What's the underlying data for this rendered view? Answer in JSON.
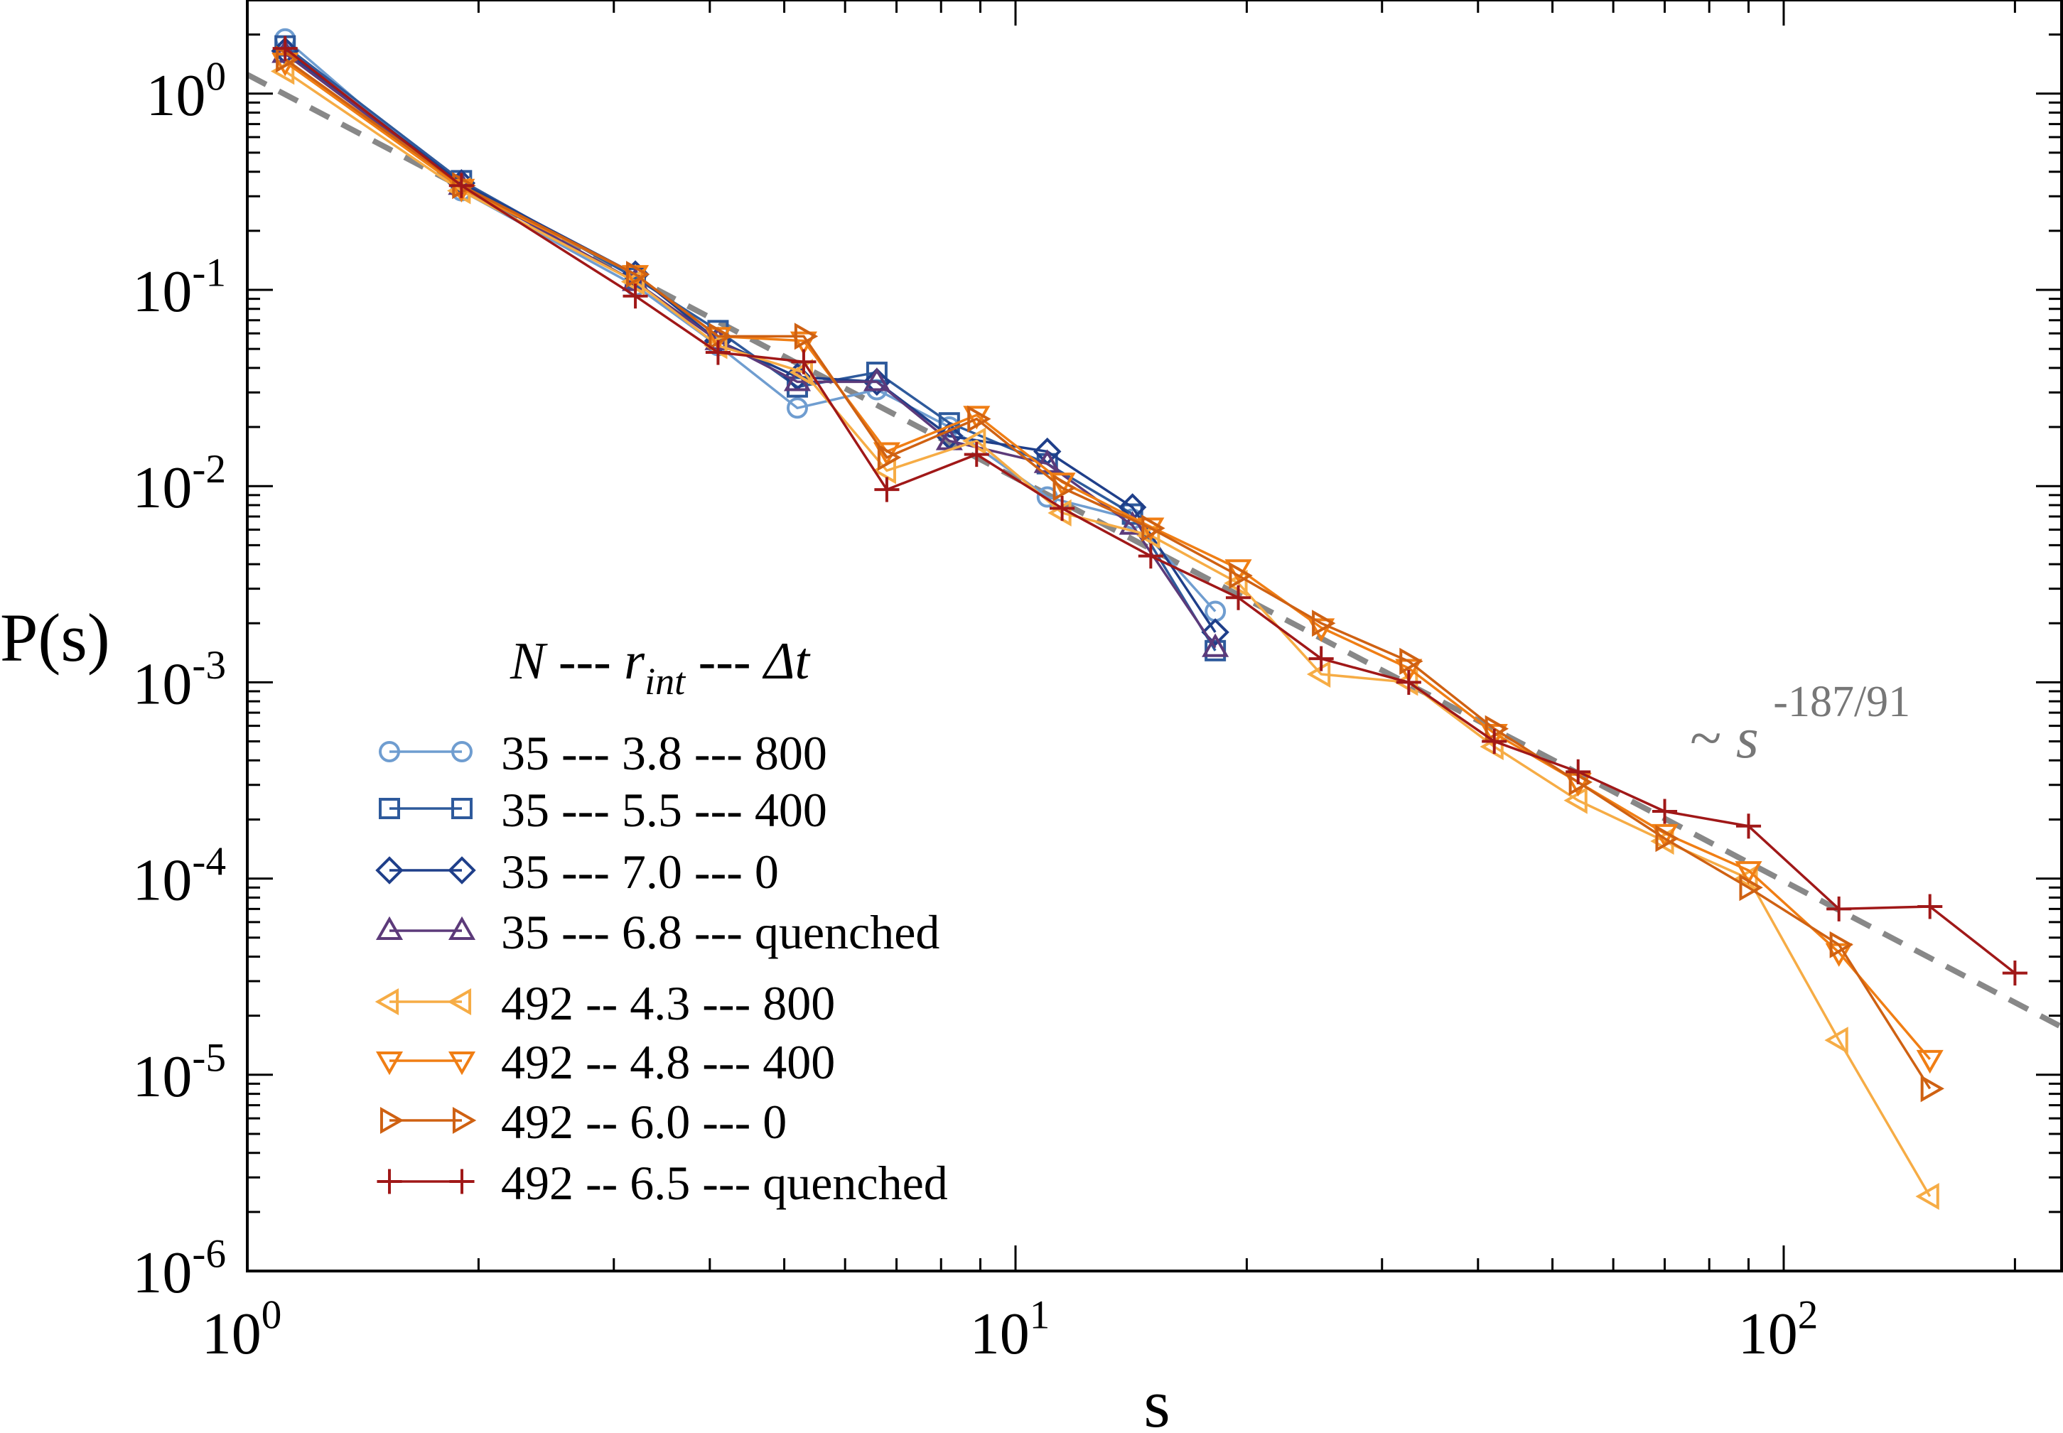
{
  "chart_data": {
    "type": "scatter",
    "title": "",
    "xlabel": "s",
    "ylabel": "P(s)",
    "xscale": "log",
    "yscale": "log",
    "xlim": [
      1,
      230
    ],
    "ylim": [
      1e-06,
      3
    ],
    "x_tick_labels": [
      {
        "base": "10",
        "exp": "0",
        "value": 1
      },
      {
        "base": "10",
        "exp": "1",
        "value": 10
      },
      {
        "base": "10",
        "exp": "2",
        "value": 100
      }
    ],
    "y_tick_labels": [
      {
        "base": "10",
        "exp": "0",
        "value": 1
      },
      {
        "base": "10",
        "exp": "-1",
        "value": 0.1
      },
      {
        "base": "10",
        "exp": "-2",
        "value": 0.01
      },
      {
        "base": "10",
        "exp": "-3",
        "value": 0.001
      },
      {
        "base": "10",
        "exp": "-4",
        "value": 0.0001
      },
      {
        "base": "10",
        "exp": "-5",
        "value": 1e-05
      },
      {
        "base": "10",
        "exp": "-6",
        "value": 1e-06
      }
    ],
    "legend": {
      "title_parts": [
        "N",
        " --- ",
        "r",
        "int",
        " --- ",
        "Δt"
      ],
      "placement": "bottom-left"
    },
    "annotation": {
      "prefix": "~",
      "var": "s",
      "exp": "-187/91"
    },
    "fit_line": {
      "coef": 1.25,
      "exponent": -2.0549,
      "x_range": [
        1,
        230
      ],
      "color": "#888888"
    },
    "series": [
      {
        "name": "35 --- 3.8 --- 800",
        "color": "#6f9dd0",
        "marker": "circle",
        "x": [
          1.12,
          1.9,
          3.2,
          4.1,
          5.2,
          6.6,
          8.2,
          11.0,
          14.2,
          18.2
        ],
        "y": [
          1.9,
          0.32,
          0.105,
          0.052,
          0.025,
          0.031,
          0.02,
          0.0088,
          0.0068,
          0.0023
        ]
      },
      {
        "name": "35 --- 5.5 --- 400",
        "color": "#2e5a9c",
        "marker": "square",
        "x": [
          1.12,
          1.9,
          3.2,
          4.1,
          5.2,
          6.6,
          8.2,
          11.0,
          14.2,
          18.2
        ],
        "y": [
          1.75,
          0.36,
          0.115,
          0.062,
          0.032,
          0.038,
          0.021,
          0.013,
          0.0072,
          0.00145
        ]
      },
      {
        "name": "35 --- 7.0 --- 0",
        "color": "#1f3f8a",
        "marker": "diamond",
        "x": [
          1.12,
          1.9,
          3.2,
          4.1,
          5.2,
          6.6,
          8.2,
          11.0,
          14.2,
          18.2
        ],
        "y": [
          1.65,
          0.35,
          0.12,
          0.055,
          0.036,
          0.034,
          0.018,
          0.015,
          0.0078,
          0.0018
        ]
      },
      {
        "name": "35 --- 6.8 --- quenched",
        "color": "#5c3a7a",
        "marker": "triangle-up",
        "x": [
          1.12,
          1.9,
          3.2,
          4.1,
          5.2,
          6.6,
          8.2,
          11.0,
          14.2,
          18.2
        ],
        "y": [
          1.6,
          0.34,
          0.11,
          0.055,
          0.034,
          0.034,
          0.017,
          0.013,
          0.0063,
          0.0015
        ]
      },
      {
        "name": "492 -- 4.3 --- 800",
        "color": "#f6ac45",
        "marker": "triangle-left",
        "x": [
          1.12,
          1.9,
          3.2,
          4.1,
          5.3,
          6.8,
          8.9,
          11.5,
          15.0,
          19.5,
          25.0,
          32.5,
          42.0,
          54.0,
          70.0,
          90.0,
          118.0,
          155.0
        ],
        "y": [
          1.3,
          0.32,
          0.11,
          0.052,
          0.038,
          0.012,
          0.017,
          0.0073,
          0.0056,
          0.0032,
          0.0011,
          0.001,
          0.00047,
          0.00025,
          0.000155,
          0.0001,
          1.5e-05,
          2.4e-06
        ]
      },
      {
        "name": "492 -- 4.8 --- 400",
        "color": "#f07e14",
        "marker": "triangle-down",
        "x": [
          1.12,
          1.9,
          3.2,
          4.1,
          5.3,
          6.8,
          8.9,
          11.5,
          15.0,
          19.5,
          25.0,
          32.5,
          42.0,
          54.0,
          70.0,
          90.0,
          118.0,
          155.0
        ],
        "y": [
          1.45,
          0.33,
          0.12,
          0.058,
          0.055,
          0.015,
          0.023,
          0.0105,
          0.0062,
          0.0038,
          0.0019,
          0.00118,
          0.00055,
          0.00031,
          0.00017,
          0.00011,
          4.2e-05,
          1.2e-05
        ]
      },
      {
        "name": "492 -- 6.0 --- 0",
        "color": "#cf6112",
        "marker": "triangle-right",
        "x": [
          1.12,
          1.9,
          3.2,
          4.1,
          5.3,
          6.8,
          8.9,
          11.5,
          15.0,
          19.5,
          25.0,
          32.5,
          42.0,
          54.0,
          70.0,
          90.0,
          118.0,
          155.0
        ],
        "y": [
          1.5,
          0.34,
          0.12,
          0.058,
          0.058,
          0.014,
          0.022,
          0.0098,
          0.0061,
          0.0035,
          0.002,
          0.00128,
          0.00058,
          0.00031,
          0.00016,
          9e-05,
          4.6e-05,
          8.5e-06
        ]
      },
      {
        "name": "492 -- 6.5 --- quenched",
        "color": "#a01818",
        "marker": "plus",
        "x": [
          1.12,
          1.9,
          3.2,
          4.1,
          5.3,
          6.8,
          8.9,
          11.5,
          15.0,
          19.5,
          25.0,
          32.5,
          42.0,
          54.0,
          70.0,
          90.0,
          118.0,
          155.0,
          200.0
        ],
        "y": [
          1.7,
          0.34,
          0.093,
          0.048,
          0.043,
          0.0096,
          0.0145,
          0.0077,
          0.0044,
          0.0027,
          0.00132,
          0.001,
          0.0005,
          0.00035,
          0.00022,
          0.000185,
          7e-05,
          7.2e-05,
          3.3e-05
        ]
      }
    ]
  }
}
